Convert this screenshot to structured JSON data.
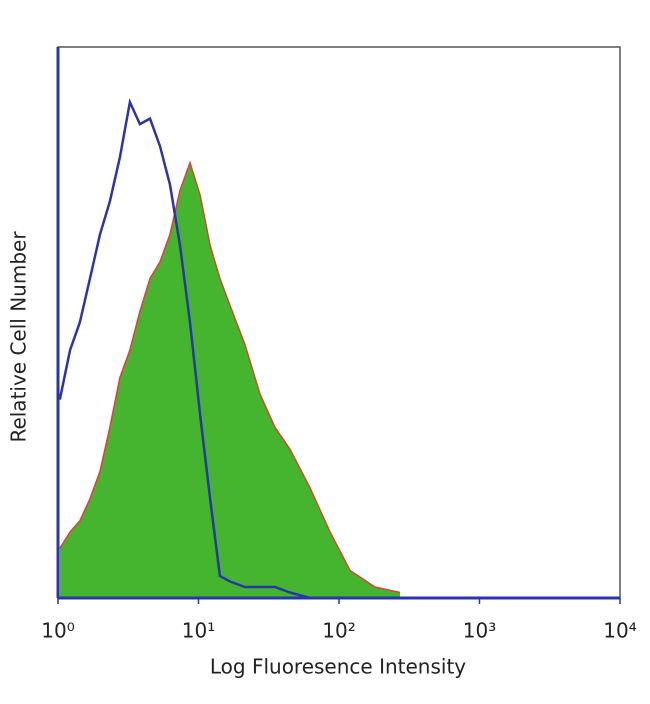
{
  "chart_data": {
    "type": "histogram-overlay",
    "xlabel": "Log Fluoresence Intensity",
    "ylabel": "Relative Cell Number",
    "xscale": "log",
    "xlim": [
      1,
      10000
    ],
    "ylim": [
      0,
      100
    ],
    "xticks": [
      {
        "value": 1,
        "label": "10⁰"
      },
      {
        "value": 10,
        "label": "10¹"
      },
      {
        "value": 100,
        "label": "10²"
      },
      {
        "value": 1000,
        "label": "10³"
      },
      {
        "value": 10000,
        "label": "10⁴"
      }
    ],
    "x": [
      1.03,
      1.22,
      1.43,
      1.69,
      1.99,
      2.34,
      2.76,
      3.25,
      3.83,
      4.52,
      5.32,
      6.27,
      7.38,
      8.7,
      10.3,
      12.1,
      14.2,
      16.8,
      21.4,
      27.4,
      35,
      44.8,
      62.2,
      86.3,
      120,
      180,
      272
    ],
    "series": [
      {
        "color": "#2a36a8",
        "style": "line",
        "values": [
          36,
          45,
          50,
          58,
          66,
          72,
          80,
          90,
          86,
          87,
          82,
          75,
          64,
          50,
          33,
          18,
          4,
          3,
          2,
          2,
          2,
          1,
          0,
          0,
          0,
          0,
          0
        ]
      },
      {
        "color": "#45b52f",
        "edgecolor": "#e0403a",
        "style": "filled",
        "values": [
          9,
          12,
          14,
          18,
          23,
          31,
          40,
          45,
          52,
          58,
          61,
          66,
          74,
          79,
          73,
          64,
          58,
          53,
          46,
          37,
          31,
          27,
          20,
          12,
          5,
          2,
          1
        ]
      }
    ]
  }
}
